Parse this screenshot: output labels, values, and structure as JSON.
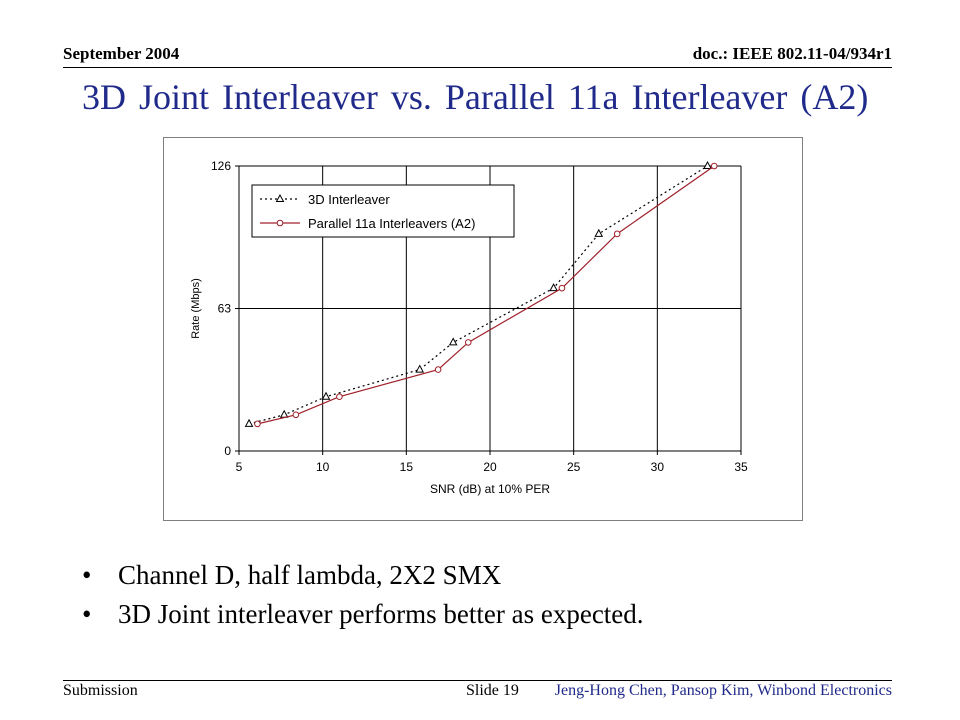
{
  "header": {
    "date": "September 2004",
    "doc_id": "doc.: IEEE 802.11-04/934r1"
  },
  "title": "3D Joint Interleaver vs. Parallel 11a Interleaver (A2)",
  "bullets": [
    "Channel D, half lambda, 2X2 SMX",
    "3D Joint interleaver performs better as expected."
  ],
  "footer": {
    "left": "Submission",
    "center": "Slide 19",
    "right": "Jeng-Hong Chen, Pansop Kim, Winbond Electronics"
  },
  "colors": {
    "title": "#1f2a8a",
    "series_3d": "#000000",
    "series_parallel": "#a0202a"
  },
  "chart_data": {
    "type": "line",
    "title": "",
    "xlabel": "SNR (dB) at 10% PER",
    "ylabel": "Rate (Mbps)",
    "xlim": [
      5,
      35
    ],
    "ylim": [
      0,
      126
    ],
    "xticks": [
      5,
      10,
      15,
      20,
      25,
      30,
      35
    ],
    "yticks": [
      0,
      63,
      126
    ],
    "grid": "vertical and horizontal major gridlines",
    "legend_position": "top-left",
    "series": [
      {
        "name": "3D Interleaver",
        "style": "dotted, triangle markers",
        "color": "#000000",
        "x": [
          5.6,
          7.7,
          10.2,
          15.8,
          17.8,
          23.8,
          26.5,
          33.0
        ],
        "y": [
          12,
          16,
          24,
          36,
          48,
          72,
          96,
          126
        ]
      },
      {
        "name": "Parallel 11a Interleavers (A2)",
        "style": "solid, circle markers",
        "color": "#a0202a",
        "x": [
          6.1,
          8.4,
          11.0,
          16.9,
          18.7,
          24.3,
          27.6,
          33.4
        ],
        "y": [
          12,
          16,
          24,
          36,
          48,
          72,
          96,
          126
        ]
      }
    ]
  }
}
